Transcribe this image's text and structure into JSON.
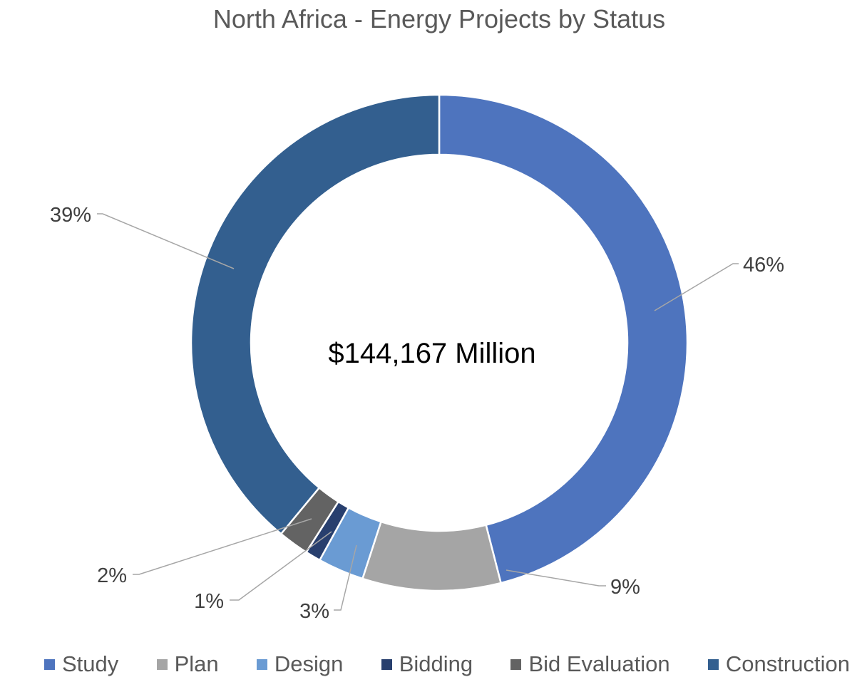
{
  "chart_data": {
    "type": "pie",
    "title": "North Africa - Energy Projects by Status",
    "center_label": "$144,167 Million",
    "categories": [
      "Study",
      "Plan",
      "Design",
      "Bidding",
      "Bid Evaluation",
      "Construction"
    ],
    "values": [
      46,
      9,
      3,
      1,
      2,
      39
    ],
    "value_labels": [
      "46%",
      "9%",
      "3%",
      "1%",
      "2%",
      "39%"
    ],
    "colors": [
      "#4E74BE",
      "#A5A5A5",
      "#6A9BD3",
      "#283F6E",
      "#636363",
      "#335F8F"
    ],
    "legend_position": "bottom",
    "style": "doughnut"
  }
}
